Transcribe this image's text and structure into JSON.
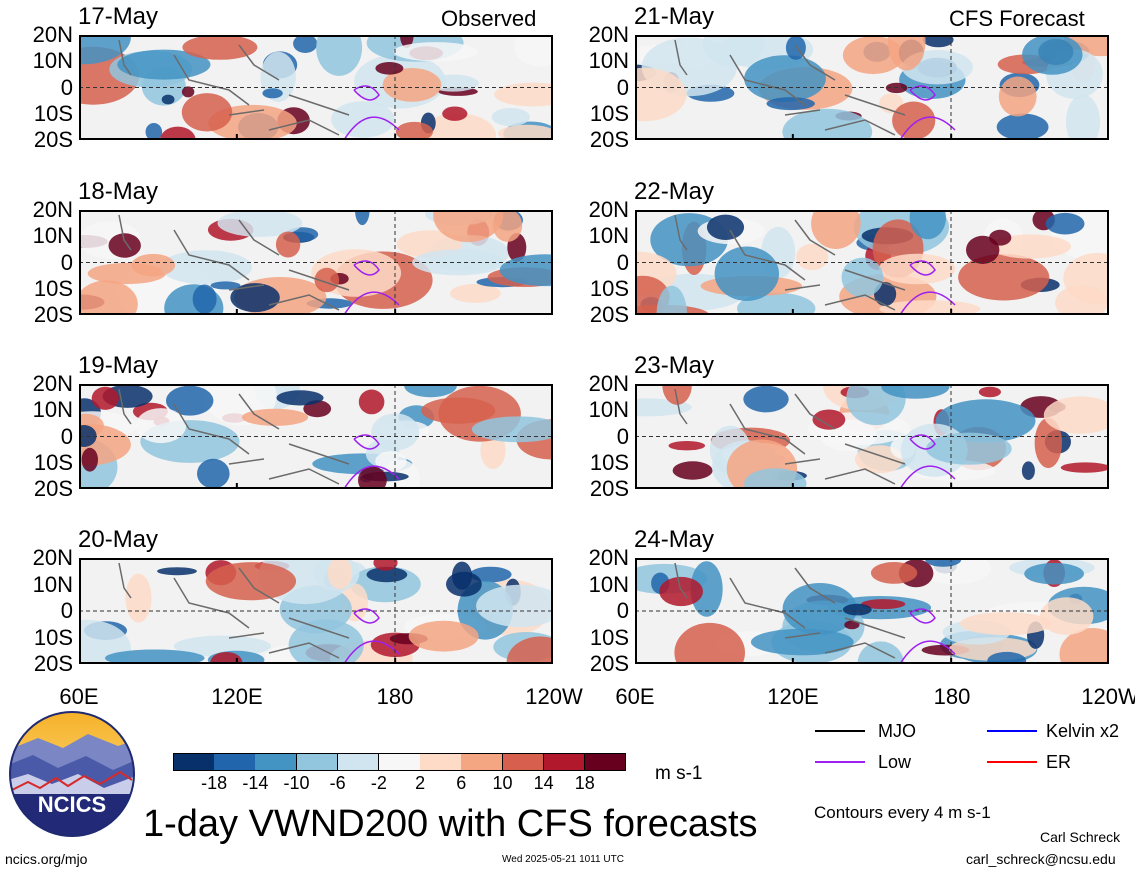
{
  "panels_left_corner": "Observed",
  "panels_right_corner": "CFS Forecast",
  "left_dates": [
    "17-May",
    "18-May",
    "19-May",
    "20-May"
  ],
  "right_dates": [
    "21-May",
    "22-May",
    "23-May",
    "24-May"
  ],
  "lat_labels": [
    "20N",
    "10N",
    "0",
    "10S",
    "20S"
  ],
  "lon_labels": [
    "60E",
    "120E",
    "180",
    "120W"
  ],
  "colorbar": {
    "labels": [
      "-18",
      "-14",
      "-10",
      "-6",
      "-2",
      "2",
      "6",
      "10",
      "14",
      "18"
    ],
    "colors": [
      "#08306b",
      "#2166ac",
      "#4393c3",
      "#92c5de",
      "#d1e5f0",
      "#f7f7f7",
      "#fddbc7",
      "#f4a582",
      "#d6604d",
      "#b2182b",
      "#67001f"
    ],
    "units": "m s-1"
  },
  "legend": {
    "items": [
      {
        "label": "MJO",
        "color": "#000000"
      },
      {
        "label": "Kelvin x2",
        "color": "#0000ff"
      },
      {
        "label": "Low",
        "color": "#a020f0"
      },
      {
        "label": "ER",
        "color": "#ff0000"
      }
    ],
    "contours": "Contours every 4 m s-1"
  },
  "title": "1-day VWND200 with CFS forecasts",
  "logo_text": "NCICS",
  "footer": {
    "left": "ncics.org/mjo",
    "center": "Wed 2025-05-21 1011 UTC",
    "author": "Carl Schreck",
    "email": "carl_schreck@ncsu.edu"
  },
  "chart_data": {
    "type": "heatmap",
    "variable": "VWND200",
    "units": "m s-1",
    "lon_range": [
      "60E",
      "120W"
    ],
    "lat_range": [
      "20S",
      "20N"
    ],
    "color_levels": [
      -18,
      -14,
      -10,
      -6,
      -2,
      2,
      6,
      10,
      14,
      18
    ],
    "panels": [
      "17-May",
      "18-May",
      "19-May",
      "20-May",
      "21-May",
      "22-May",
      "23-May",
      "24-May"
    ],
    "observed_panels": [
      "17-May",
      "18-May",
      "19-May",
      "20-May"
    ],
    "forecast_panels": [
      "21-May",
      "22-May",
      "23-May",
      "24-May"
    ],
    "contour_interval": 4
  }
}
